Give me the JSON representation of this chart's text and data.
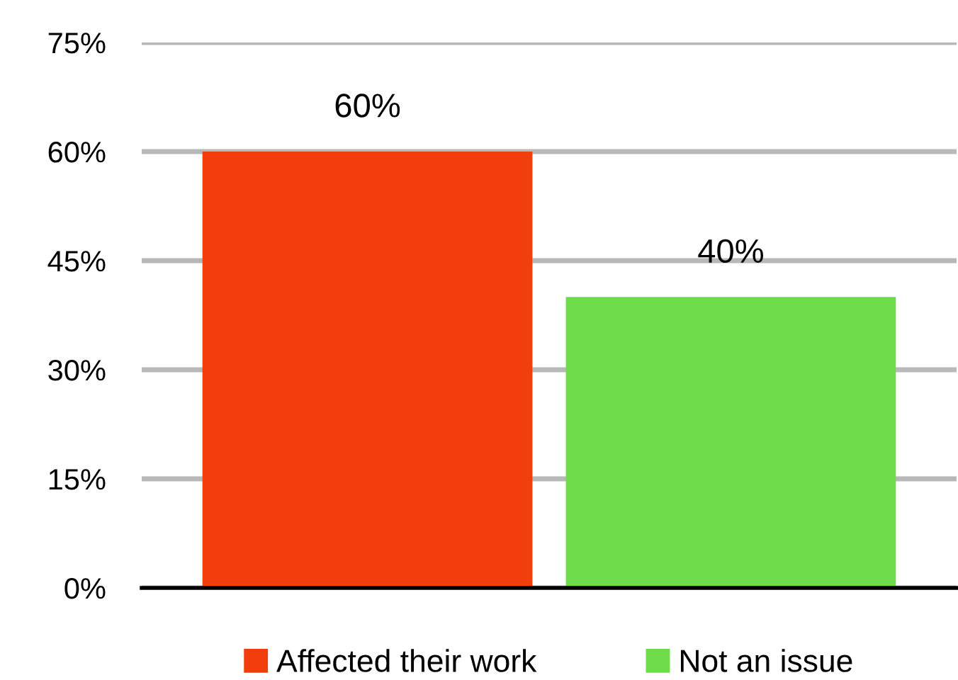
{
  "chart_data": {
    "type": "bar",
    "categories": [
      null
    ],
    "series": [
      {
        "name": "Affected their work",
        "color": "#f23d0c",
        "values": [
          60
        ],
        "value_labels": [
          "60%"
        ]
      },
      {
        "name": "Not an issue",
        "color": "#6ddb4a",
        "values": [
          40
        ],
        "value_labels": [
          "40%"
        ]
      }
    ],
    "ylim": [
      0,
      75
    ],
    "yticks": [
      {
        "value": 0,
        "label": "0%"
      },
      {
        "value": 15,
        "label": "15%"
      },
      {
        "value": 30,
        "label": "30%"
      },
      {
        "value": 45,
        "label": "45%"
      },
      {
        "value": 60,
        "label": "60%"
      },
      {
        "value": 75,
        "label": "75%"
      }
    ],
    "grid": "y",
    "legend": "bottom"
  }
}
